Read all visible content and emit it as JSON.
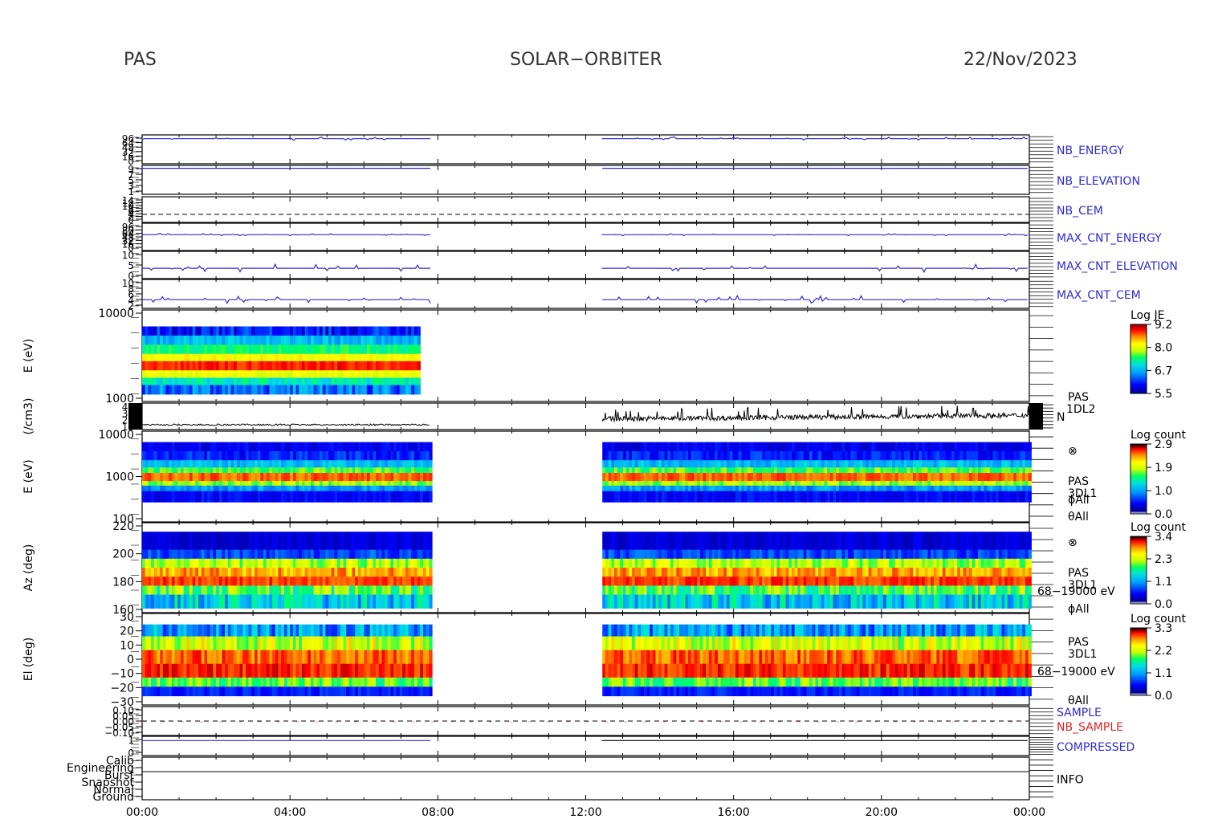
{
  "header": {
    "left": "PAS",
    "center": "SOLAR−ORBITER",
    "right": "22/Nov/2023"
  },
  "colors": {
    "blue_trace": "#2b2bd6",
    "red_label": "#dd2222",
    "axis": "#000000",
    "colorscale": [
      "#000080",
      "#0000ff",
      "#00a0ff",
      "#00e0e0",
      "#00ff60",
      "#c8ff00",
      "#ffff00",
      "#ff9000",
      "#ff0000",
      "#900000"
    ]
  },
  "chart_data": [
    {
      "type": "line",
      "name": "NB_ENERGY",
      "ytick_labels": [
        "96",
        "64",
        "48",
        "32",
        "16",
        "0"
      ]
    },
    {
      "type": "line",
      "name": "NB_ELEVATION",
      "ytick_labels": [
        "9",
        "7",
        "5",
        "3",
        "1"
      ]
    },
    {
      "type": "line",
      "name": "NB_CEM",
      "ytick_labels": [
        "14",
        "12",
        "10",
        "8",
        "6",
        "4",
        "2",
        "0"
      ]
    },
    {
      "type": "line",
      "name": "MAX_CNT_ENERGY",
      "ytick_labels": [
        "96",
        "80",
        "64",
        "48",
        "32",
        "16",
        "0"
      ]
    },
    {
      "type": "line",
      "name": "MAX_CNT_ELEVATION",
      "ytick_labels": [
        "10",
        "5",
        "0"
      ]
    },
    {
      "type": "line",
      "name": "MAX_CNT_CEM",
      "ytick_labels": [
        "10",
        "8",
        "6",
        "4",
        "2"
      ]
    },
    {
      "type": "heatmap",
      "name": "E (eV) 1DL2",
      "ylabel": "E (eV)",
      "ytick_labels": [
        "10000",
        "1000"
      ],
      "colorbar": {
        "title": "Log JE",
        "ticks": [
          "9.2",
          "8.0",
          "6.7",
          "5.5"
        ]
      }
    },
    {
      "type": "line",
      "name": "N",
      "ylabel": "(/cm3)",
      "ytick_labels": [
        "40",
        "30",
        "20",
        "10"
      ],
      "side_labels": [
        "PAS",
        "1DL2",
        "N"
      ]
    },
    {
      "type": "heatmap",
      "name": "E (eV) 3DL1",
      "ylabel": "E (eV)",
      "ytick_labels": [
        "10000",
        "1000",
        "100"
      ],
      "side_labels": [
        "⊗",
        "PAS",
        "3DL1",
        "ϕAll",
        "θAll"
      ],
      "colorbar": {
        "title": "Log count",
        "ticks": [
          "2.9",
          "1.9",
          "1.0",
          "0.0"
        ]
      }
    },
    {
      "type": "heatmap",
      "name": "Az (deg)",
      "ylabel": "Az (deg)",
      "ytick_labels": [
        "220",
        "200",
        "180",
        "160"
      ],
      "side_labels": [
        "⊗",
        "PAS",
        "3DL1",
        "68−19000 eV",
        "ϕAll"
      ],
      "colorbar": {
        "title": "Log count",
        "ticks": [
          "3.4",
          "2.3",
          "1.1",
          "0.0"
        ]
      }
    },
    {
      "type": "heatmap",
      "name": "El (deg)",
      "ylabel": "El (deg)",
      "ytick_labels": [
        "30",
        "20",
        "10",
        "0",
        "−10",
        "−20",
        "−30"
      ],
      "side_labels": [
        "PAS",
        "3DL1",
        "68−19000 eV",
        "θAll"
      ],
      "colorbar": {
        "title": "Log count",
        "ticks": [
          "3.3",
          "2.2",
          "1.1",
          "0.0"
        ]
      }
    },
    {
      "type": "line",
      "name": "SAMPLE / NB_SAMPLE",
      "ytick_labels": [
        "0.10",
        "0.05",
        "0.00",
        "−0.05",
        "−0.10"
      ],
      "labels": [
        "SAMPLE",
        "NB_SAMPLE"
      ]
    },
    {
      "type": "line",
      "name": "COMPRESSED",
      "ytick_labels": [
        "1",
        "0"
      ]
    },
    {
      "type": "line",
      "name": "INFO",
      "ytick_labels": [
        "Calib",
        "Engineering",
        "Burst",
        "Snapshot",
        "Normal",
        "Ground"
      ]
    }
  ],
  "xaxis": {
    "tick_labels": [
      "00:00",
      "04:00",
      "08:00",
      "12:00",
      "16:00",
      "20:00",
      "00:00"
    ],
    "range_hours": [
      0,
      24
    ]
  },
  "data_gaps": {
    "gap1_hours": [
      7.8,
      12.0
    ],
    "gap2_hours": [
      12.0,
      12.45
    ]
  }
}
